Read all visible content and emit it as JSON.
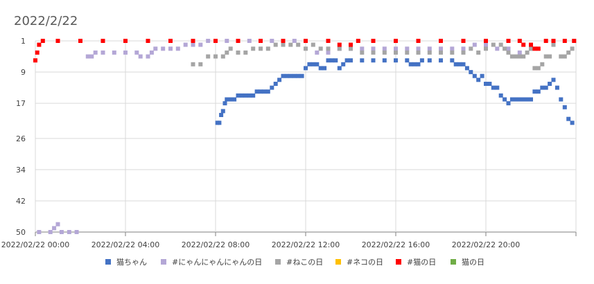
{
  "chart_data": {
    "type": "scatter",
    "title": "2022/2/22",
    "x_range": [
      "2022/02/22 00:00",
      "2022/02/23 00:00"
    ],
    "x_ticks": [
      "2022/02/22 00:00",
      "2022/02/22 04:00",
      "2022/02/22 08:00",
      "2022/02/22 12:00",
      "2022/02/22 16:00",
      "2022/02/22 20:00"
    ],
    "y_ticks": [
      1,
      9,
      17,
      26,
      34,
      42,
      50
    ],
    "y_reversed": true,
    "ylim": [
      1,
      50
    ],
    "grid": true,
    "legend_position": "bottom",
    "series": [
      {
        "name": "猫ちゃん",
        "color": "#4472C4",
        "points": [
          [
            "08:05",
            22
          ],
          [
            "08:10",
            22
          ],
          [
            "08:15",
            20
          ],
          [
            "08:20",
            19
          ],
          [
            "08:25",
            17
          ],
          [
            "08:30",
            16
          ],
          [
            "08:40",
            16
          ],
          [
            "08:50",
            16
          ],
          [
            "09:00",
            15
          ],
          [
            "09:10",
            15
          ],
          [
            "09:20",
            15
          ],
          [
            "09:30",
            15
          ],
          [
            "09:40",
            15
          ],
          [
            "09:50",
            14
          ],
          [
            "10:00",
            14
          ],
          [
            "10:10",
            14
          ],
          [
            "10:20",
            14
          ],
          [
            "10:30",
            13
          ],
          [
            "10:40",
            12
          ],
          [
            "10:50",
            11
          ],
          [
            "11:00",
            10
          ],
          [
            "11:10",
            10
          ],
          [
            "11:20",
            10
          ],
          [
            "11:30",
            10
          ],
          [
            "11:40",
            10
          ],
          [
            "11:50",
            10
          ],
          [
            "12:00",
            8
          ],
          [
            "12:10",
            7
          ],
          [
            "12:20",
            7
          ],
          [
            "12:30",
            7
          ],
          [
            "12:40",
            8
          ],
          [
            "12:50",
            8
          ],
          [
            "13:00",
            6
          ],
          [
            "13:10",
            6
          ],
          [
            "13:20",
            6
          ],
          [
            "13:30",
            8
          ],
          [
            "13:40",
            7
          ],
          [
            "13:50",
            6
          ],
          [
            "14:00",
            6
          ],
          [
            "14:30",
            6
          ],
          [
            "15:00",
            6
          ],
          [
            "15:30",
            6
          ],
          [
            "16:00",
            6
          ],
          [
            "16:30",
            6
          ],
          [
            "16:40",
            7
          ],
          [
            "16:50",
            7
          ],
          [
            "17:00",
            7
          ],
          [
            "17:10",
            6
          ],
          [
            "17:30",
            6
          ],
          [
            "18:00",
            6
          ],
          [
            "18:30",
            6
          ],
          [
            "18:40",
            7
          ],
          [
            "18:50",
            7
          ],
          [
            "19:00",
            7
          ],
          [
            "19:10",
            8
          ],
          [
            "19:20",
            9
          ],
          [
            "19:30",
            10
          ],
          [
            "19:40",
            11
          ],
          [
            "19:50",
            10
          ],
          [
            "20:00",
            12
          ],
          [
            "20:10",
            12
          ],
          [
            "20:20",
            13
          ],
          [
            "20:30",
            13
          ],
          [
            "20:40",
            15
          ],
          [
            "20:50",
            16
          ],
          [
            "21:00",
            17
          ],
          [
            "21:10",
            16
          ],
          [
            "21:20",
            16
          ],
          [
            "21:30",
            16
          ],
          [
            "21:40",
            16
          ],
          [
            "21:50",
            16
          ],
          [
            "22:00",
            16
          ],
          [
            "22:10",
            14
          ],
          [
            "22:20",
            14
          ],
          [
            "22:30",
            13
          ],
          [
            "22:40",
            13
          ],
          [
            "22:50",
            12
          ],
          [
            "23:00",
            11
          ],
          [
            "23:10",
            13
          ],
          [
            "23:20",
            16
          ],
          [
            "23:30",
            18
          ],
          [
            "23:40",
            21
          ],
          [
            "23:50",
            22
          ]
        ]
      },
      {
        "name": "#にゃんにゃんにゃんの日",
        "color": "#B4A7D6",
        "points": [
          [
            "00:10",
            50
          ],
          [
            "00:40",
            50
          ],
          [
            "00:50",
            49
          ],
          [
            "01:00",
            48
          ],
          [
            "01:10",
            50
          ],
          [
            "01:30",
            50
          ],
          [
            "01:50",
            50
          ],
          [
            "02:20",
            5
          ],
          [
            "02:30",
            5
          ],
          [
            "02:40",
            4
          ],
          [
            "03:00",
            4
          ],
          [
            "03:30",
            4
          ],
          [
            "04:00",
            4
          ],
          [
            "04:30",
            4
          ],
          [
            "04:40",
            5
          ],
          [
            "05:00",
            5
          ],
          [
            "05:10",
            4
          ],
          [
            "05:20",
            3
          ],
          [
            "05:40",
            3
          ],
          [
            "06:00",
            3
          ],
          [
            "06:20",
            3
          ],
          [
            "06:40",
            2
          ],
          [
            "07:00",
            2
          ],
          [
            "07:20",
            2
          ],
          [
            "07:40",
            1
          ],
          [
            "08:00",
            1
          ],
          [
            "08:30",
            1
          ],
          [
            "09:00",
            1
          ],
          [
            "09:30",
            1
          ],
          [
            "10:00",
            1
          ],
          [
            "10:30",
            1
          ],
          [
            "11:00",
            1
          ],
          [
            "11:30",
            1
          ],
          [
            "12:00",
            1
          ],
          [
            "12:30",
            4
          ],
          [
            "13:00",
            4
          ],
          [
            "13:30",
            3
          ],
          [
            "14:00",
            3
          ],
          [
            "14:30",
            3
          ],
          [
            "15:00",
            3
          ],
          [
            "15:30",
            3
          ],
          [
            "16:00",
            3
          ],
          [
            "16:30",
            3
          ],
          [
            "17:00",
            3
          ],
          [
            "17:30",
            3
          ],
          [
            "18:00",
            3
          ],
          [
            "18:30",
            3
          ],
          [
            "19:00",
            3
          ],
          [
            "19:30",
            2
          ],
          [
            "20:00",
            2
          ],
          [
            "20:30",
            3
          ],
          [
            "21:00",
            3
          ],
          [
            "21:30",
            4
          ],
          [
            "22:00",
            3
          ]
        ]
      },
      {
        "name": "#ねこの日",
        "color": "#A5A5A5",
        "points": [
          [
            "07:00",
            7
          ],
          [
            "07:20",
            7
          ],
          [
            "07:40",
            5
          ],
          [
            "08:00",
            5
          ],
          [
            "08:20",
            5
          ],
          [
            "08:30",
            4
          ],
          [
            "08:40",
            3
          ],
          [
            "09:00",
            4
          ],
          [
            "09:20",
            4
          ],
          [
            "09:40",
            3
          ],
          [
            "10:00",
            3
          ],
          [
            "10:20",
            3
          ],
          [
            "10:40",
            2
          ],
          [
            "11:00",
            2
          ],
          [
            "11:20",
            2
          ],
          [
            "11:40",
            2
          ],
          [
            "12:00",
            3
          ],
          [
            "12:20",
            2
          ],
          [
            "12:40",
            3
          ],
          [
            "13:00",
            3
          ],
          [
            "13:30",
            3
          ],
          [
            "14:00",
            3
          ],
          [
            "14:30",
            4
          ],
          [
            "15:00",
            4
          ],
          [
            "15:30",
            4
          ],
          [
            "16:00",
            4
          ],
          [
            "16:30",
            4
          ],
          [
            "17:00",
            4
          ],
          [
            "17:30",
            4
          ],
          [
            "18:00",
            4
          ],
          [
            "18:30",
            4
          ],
          [
            "19:00",
            4
          ],
          [
            "19:20",
            3
          ],
          [
            "19:40",
            4
          ],
          [
            "20:00",
            3
          ],
          [
            "20:20",
            2
          ],
          [
            "20:40",
            2
          ],
          [
            "20:50",
            3
          ],
          [
            "21:00",
            4
          ],
          [
            "21:10",
            5
          ],
          [
            "21:20",
            5
          ],
          [
            "21:30",
            5
          ],
          [
            "21:40",
            5
          ],
          [
            "21:50",
            4
          ],
          [
            "22:00",
            3
          ],
          [
            "22:10",
            8
          ],
          [
            "22:20",
            8
          ],
          [
            "22:30",
            7
          ],
          [
            "22:40",
            5
          ],
          [
            "22:50",
            5
          ],
          [
            "23:00",
            2
          ],
          [
            "23:20",
            5
          ],
          [
            "23:30",
            5
          ],
          [
            "23:40",
            4
          ],
          [
            "23:50",
            3
          ],
          [
            "23:55",
            1
          ]
        ]
      },
      {
        "name": "#ネコの日",
        "color": "#FFC000",
        "points": []
      },
      {
        "name": "#猫の日",
        "color": "#FF0000",
        "points": [
          [
            "00:00",
            6
          ],
          [
            "00:05",
            4
          ],
          [
            "00:10",
            2
          ],
          [
            "00:20",
            1
          ],
          [
            "01:00",
            1
          ],
          [
            "02:00",
            1
          ],
          [
            "03:00",
            1
          ],
          [
            "04:00",
            1
          ],
          [
            "05:00",
            1
          ],
          [
            "06:00",
            1
          ],
          [
            "07:00",
            1
          ],
          [
            "08:00",
            1
          ],
          [
            "09:00",
            1
          ],
          [
            "10:00",
            1
          ],
          [
            "11:00",
            1
          ],
          [
            "12:00",
            1
          ],
          [
            "13:00",
            1
          ],
          [
            "13:30",
            2
          ],
          [
            "14:00",
            2
          ],
          [
            "14:20",
            1
          ],
          [
            "15:00",
            1
          ],
          [
            "16:00",
            1
          ],
          [
            "17:00",
            1
          ],
          [
            "18:00",
            1
          ],
          [
            "19:00",
            1
          ],
          [
            "20:00",
            1
          ],
          [
            "21:00",
            1
          ],
          [
            "21:30",
            1
          ],
          [
            "21:40",
            2
          ],
          [
            "22:00",
            2
          ],
          [
            "22:10",
            3
          ],
          [
            "22:20",
            3
          ],
          [
            "22:40",
            1
          ],
          [
            "23:00",
            1
          ],
          [
            "23:30",
            1
          ],
          [
            "23:55",
            1
          ]
        ]
      },
      {
        "name": "猫の日",
        "color": "#70AD47",
        "points": []
      }
    ]
  }
}
